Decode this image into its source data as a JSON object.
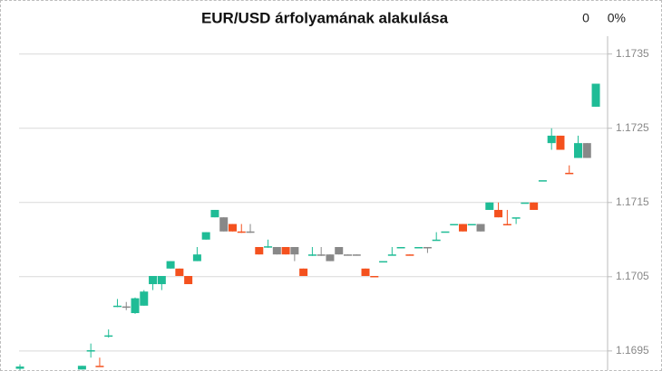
{
  "chart_data": {
    "type": "candlestick",
    "title": "EUR/USD árfolyamának alakulása",
    "change": 0,
    "change_percent": {
      "value": 0,
      "label": "0%"
    },
    "categories": [
      null,
      null,
      null,
      null,
      null,
      null,
      null,
      null,
      null,
      null,
      null,
      null,
      null,
      null,
      null,
      null,
      null,
      null,
      null,
      null,
      null,
      null,
      null,
      null,
      null,
      null,
      null,
      null,
      null,
      null,
      null,
      null,
      null,
      null,
      null,
      null,
      null,
      null,
      null,
      null,
      null,
      null,
      null,
      null,
      null,
      null,
      null,
      null,
      null,
      null,
      null,
      null,
      null,
      null,
      null,
      null,
      null,
      null,
      null,
      null,
      null,
      null,
      null,
      null,
      null,
      null
    ],
    "open": [
      1.16926,
      null,
      null,
      null,
      null,
      null,
      null,
      1.16925,
      1.1695,
      1.1693,
      1.1697,
      1.1701,
      1.1701,
      1.17001,
      1.17011,
      1.1704,
      1.1704,
      1.17061,
      1.17061,
      1.17051,
      1.17071,
      1.171,
      1.1713,
      1.1713,
      1.17121,
      1.17111,
      1.17111,
      1.1709,
      1.1709,
      1.1709,
      1.1709,
      1.1709,
      1.17061,
      1.17079,
      1.1708,
      1.1708,
      1.1709,
      1.1708,
      1.1708,
      1.17061,
      1.17051,
      1.1707,
      1.17079,
      1.17089,
      1.1708,
      1.17089,
      1.1709,
      1.17099,
      1.1711,
      1.1712,
      1.17121,
      1.1712,
      1.17121,
      1.1714,
      1.1714,
      1.17121,
      1.17129,
      1.17149,
      1.1715,
      1.17179,
      1.1723,
      1.1724,
      1.1719,
      1.1721,
      1.1723,
      1.17279
    ],
    "high": [
      1.16932,
      null,
      null,
      null,
      null,
      null,
      null,
      1.1693,
      1.1696,
      1.16941,
      1.16979,
      1.1702,
      1.17016,
      1.17022,
      1.17032,
      1.17051,
      1.17051,
      1.17071,
      1.17061,
      1.17051,
      1.1709,
      1.1711,
      1.1714,
      1.1713,
      1.17121,
      1.17121,
      1.17121,
      1.1709,
      1.171,
      1.1709,
      1.1709,
      1.1709,
      1.17061,
      1.1709,
      1.1709,
      1.1708,
      1.1709,
      1.1708,
      1.1708,
      1.17061,
      1.17051,
      1.1707,
      1.1709,
      1.17089,
      1.1708,
      1.17089,
      1.1709,
      1.1711,
      1.1711,
      1.1712,
      1.17121,
      1.1712,
      1.17121,
      1.1715,
      1.1715,
      1.1714,
      1.17129,
      1.17149,
      1.1715,
      1.17179,
      1.1725,
      1.1724,
      1.172,
      1.1724,
      1.1723,
      1.1731
    ],
    "low": [
      1.16923,
      null,
      null,
      null,
      null,
      null,
      null,
      1.16925,
      1.16941,
      1.1693,
      1.16968,
      1.17009,
      1.17005,
      1.17,
      1.17011,
      1.17032,
      1.17032,
      1.17061,
      1.17051,
      1.1704,
      1.17071,
      1.171,
      1.1713,
      1.17111,
      1.17111,
      1.17109,
      1.17109,
      1.1708,
      1.17089,
      1.1708,
      1.1708,
      1.17071,
      1.17051,
      1.17078,
      1.17078,
      1.17071,
      1.1708,
      1.17079,
      1.17079,
      1.17051,
      1.1705,
      1.1707,
      1.17079,
      1.17089,
      1.17079,
      1.17089,
      1.17082,
      1.17099,
      1.1711,
      1.1712,
      1.17111,
      1.1712,
      1.17111,
      1.1714,
      1.1713,
      1.1712,
      1.17121,
      1.17149,
      1.1714,
      1.17179,
      1.17221,
      1.17221,
      1.1719,
      1.1721,
      1.1721,
      1.17279
    ],
    "close": [
      1.16929,
      null,
      null,
      null,
      null,
      null,
      null,
      1.1693,
      1.16951,
      1.16929,
      1.16971,
      1.17011,
      1.1701,
      1.17021,
      1.1703,
      1.17051,
      1.17051,
      1.17071,
      1.17051,
      1.1704,
      1.1708,
      1.1711,
      1.1714,
      1.17111,
      1.17111,
      1.1711,
      1.1711,
      1.1708,
      1.17091,
      1.1708,
      1.1708,
      1.1708,
      1.17051,
      1.1708,
      1.17079,
      1.17071,
      1.1708,
      1.17079,
      1.17079,
      1.17051,
      1.1705,
      1.17071,
      1.1708,
      1.1709,
      1.17079,
      1.1709,
      1.17089,
      1.171,
      1.17111,
      1.17121,
      1.17111,
      1.17121,
      1.17111,
      1.1715,
      1.1713,
      1.1712,
      1.1713,
      1.1715,
      1.1714,
      1.1718,
      1.1724,
      1.17221,
      1.17189,
      1.1723,
      1.1721,
      1.1731
    ],
    "colors": [
      "#1fbc96",
      null,
      null,
      null,
      null,
      null,
      null,
      "#1fbc96",
      "#1fbc96",
      "#f4511e",
      "#1fbc96",
      "#1fbc96",
      "#888888",
      "#1fbc96",
      "#1fbc96",
      "#1fbc96",
      "#1fbc96",
      "#1fbc96",
      "#f4511e",
      "#f4511e",
      "#1fbc96",
      "#1fbc96",
      "#1fbc96",
      "#888888",
      "#f4511e",
      "#f4511e",
      "#888888",
      "#f4511e",
      "#1fbc96",
      "#888888",
      "#f4511e",
      "#888888",
      "#f4511e",
      "#1fbc96",
      "#888888",
      "#888888",
      "#888888",
      "#888888",
      "#888888",
      "#f4511e",
      "#f4511e",
      "#1fbc96",
      "#1fbc96",
      "#1fbc96",
      "#f4511e",
      "#1fbc96",
      "#888888",
      "#1fbc96",
      "#1fbc96",
      "#1fbc96",
      "#f4511e",
      "#1fbc96",
      "#888888",
      "#1fbc96",
      "#f4511e",
      "#f4511e",
      "#1fbc96",
      "#1fbc96",
      "#f4511e",
      "#1fbc96",
      "#1fbc96",
      "#f4511e",
      "#f4511e",
      "#1fbc96",
      "#888888",
      "#1fbc96"
    ],
    "ylim": [
      1.16923,
      1.17374
    ],
    "yticks": [
      1.1695,
      1.1705,
      1.1715,
      1.1725,
      1.1735
    ],
    "grid": true,
    "y_axis_side": "right"
  }
}
